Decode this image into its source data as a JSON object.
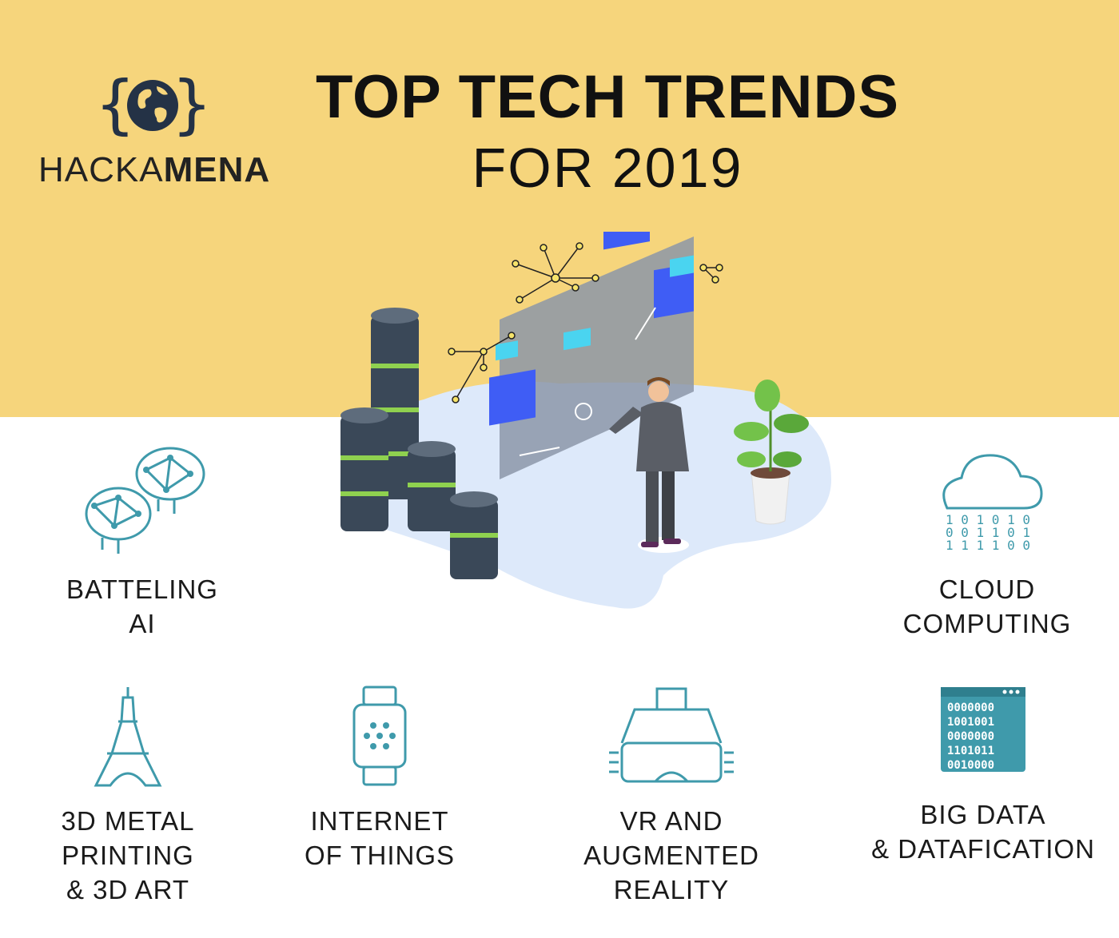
{
  "brand": {
    "name_light": "HACKA",
    "name_bold": "MENA"
  },
  "header": {
    "title": "TOP TECH TRENDS",
    "subtitle": "FOR 2019"
  },
  "colors": {
    "band": "#f6d57c",
    "icon": "#3f9aab",
    "navy": "#243246",
    "accent": "#3f5df5"
  },
  "trends": [
    {
      "icon": "brain-network-icon",
      "lines": [
        "BATTELING",
        "AI"
      ]
    },
    {
      "icon": "cloud-data-icon",
      "lines": [
        "CLOUD",
        "COMPUTING"
      ]
    },
    {
      "icon": "eiffel-tower-icon",
      "lines": [
        "3D METAL",
        "PRINTING",
        "& 3D ART"
      ]
    },
    {
      "icon": "smartwatch-icon",
      "lines": [
        "INTERNET",
        "OF THINGS"
      ]
    },
    {
      "icon": "vr-headset-icon",
      "lines": [
        "VR AND",
        "AUGMENTED",
        "REALITY"
      ]
    },
    {
      "icon": "binary-window-icon",
      "lines": [
        "BIG DATA",
        "& DATAFICATION"
      ]
    }
  ]
}
